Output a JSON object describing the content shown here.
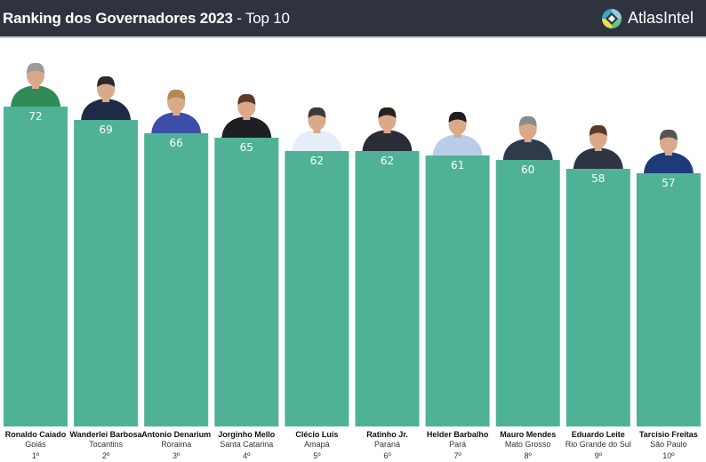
{
  "header": {
    "title_bold": "Ranking dos Governadores 2023",
    "title_rest": " - Top 10",
    "brand_name": "AtlasIntel",
    "brand_icon": "atlasintel-logo-icon"
  },
  "colors": {
    "header_bg": "#2f3340",
    "bar": "#4fb296"
  },
  "chart_data": {
    "type": "bar",
    "title": "Ranking dos Governadores 2023 - Top 10",
    "xlabel": "",
    "ylabel": "",
    "ylim": [
      0,
      72
    ],
    "grid": false,
    "legend": "none",
    "categories": [
      "Ronaldo Caiado",
      "Wanderlei Barbosa",
      "Antonio Denarium",
      "Jorginho Mello",
      "Clécio Luis",
      "Ratinho Jr.",
      "Helder Barbalho",
      "Mauro Mendes",
      "Eduardo Leite",
      "Tarcísio Freitas"
    ],
    "values": [
      72,
      69,
      66,
      65,
      62,
      62,
      61,
      60,
      58,
      57
    ],
    "states": [
      "Goiás",
      "Tocantins",
      "Roraima",
      "Santa Catarina",
      "Amapá",
      "Paraná",
      "Pará",
      "Mato Grosso",
      "Rio Grande do Sul",
      "São Paulo"
    ],
    "ranks": [
      "1º",
      "2º",
      "3º",
      "4º",
      "5º",
      "6º",
      "7º",
      "8º",
      "9º",
      "10º"
    ],
    "photos": [
      "governor-photo",
      "governor-photo",
      "governor-photo",
      "governor-photo",
      "governor-photo",
      "governor-photo",
      "governor-photo",
      "governor-photo",
      "governor-photo",
      "governor-photo"
    ]
  }
}
